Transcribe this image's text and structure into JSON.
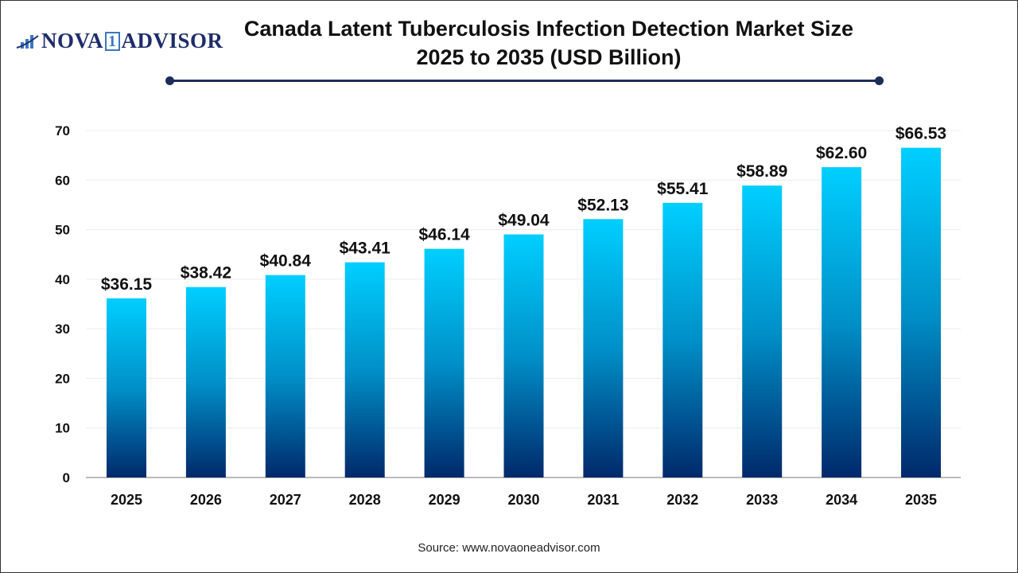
{
  "logo": {
    "text_left": "NOVA",
    "text_one": "1",
    "text_right": "ADVISOR"
  },
  "title_line1": "Canada Latent Tuberculosis Infection Detection Market Size",
  "title_line2": "2025 to 2035  (USD Billion)",
  "source": "Source: www.novaoneadvisor.com",
  "colors": {
    "bar_top": "#00cfff",
    "bar_bottom": "#00296b",
    "title_line": "#1d2d5b"
  },
  "chart_data": {
    "type": "bar",
    "title": "Canada Latent Tuberculosis Infection Detection Market Size 2025 to 2035 (USD Billion)",
    "categories": [
      "2025",
      "2026",
      "2027",
      "2028",
      "2029",
      "2030",
      "2031",
      "2032",
      "2033",
      "2034",
      "2035"
    ],
    "values": [
      36.15,
      38.42,
      40.84,
      43.41,
      46.14,
      49.04,
      52.13,
      55.41,
      58.89,
      62.6,
      66.53
    ],
    "data_labels": [
      "$36.15",
      "$38.42",
      "$40.84",
      "$43.41",
      "$46.14",
      "$49.04",
      "$52.13",
      "$55.41",
      "$58.89",
      "$62.60",
      "$66.53"
    ],
    "yticks": [
      "0",
      "10",
      "20",
      "30",
      "40",
      "50",
      "60",
      "70"
    ],
    "ylim": [
      0,
      70
    ],
    "xlabel": "",
    "ylabel": "",
    "grid": true
  }
}
